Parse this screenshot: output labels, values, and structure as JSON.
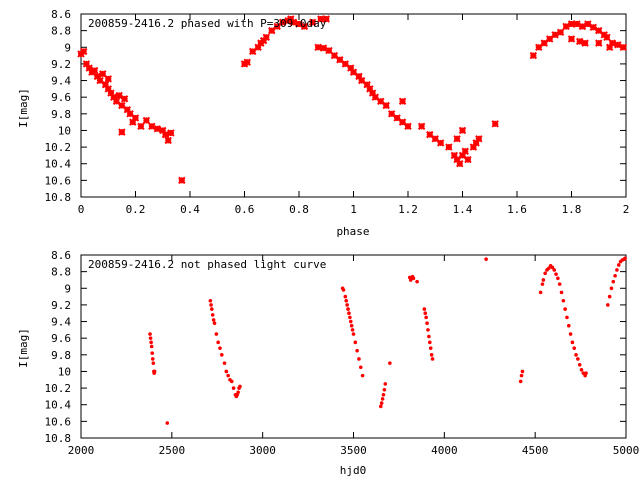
{
  "chart_data": [
    {
      "type": "scatter",
      "title": "200859-2416.2 phased with P=309.0day",
      "xlabel": "phase",
      "ylabel": "I[mag]",
      "xlim": [
        0,
        2
      ],
      "ylim": [
        10.8,
        8.6
      ],
      "y_inverted": true,
      "grid": false,
      "marker": "cross",
      "color": "#ff0000",
      "x_ticks": [
        "0",
        "0.2",
        "0.4",
        "0.6",
        "0.8",
        "1",
        "1.2",
        "1.4",
        "1.6",
        "1.8",
        "2"
      ],
      "x_tick_values": [
        0,
        0.2,
        0.4,
        0.6,
        0.8,
        1.0,
        1.2,
        1.4,
        1.6,
        1.8,
        2.0
      ],
      "y_ticks": [
        "8.6",
        "8.8",
        "9",
        "9.2",
        "9.4",
        "9.6",
        "9.8",
        "10",
        "10.2",
        "10.4",
        "10.6",
        "10.8"
      ],
      "y_tick_values": [
        8.6,
        8.8,
        9.0,
        9.2,
        9.4,
        9.6,
        9.8,
        10.0,
        10.2,
        10.4,
        10.6,
        10.8
      ],
      "series": [
        {
          "points": [
            [
              0.0,
              9.08
            ],
            [
              0.01,
              9.05
            ],
            [
              0.02,
              9.2
            ],
            [
              0.03,
              9.25
            ],
            [
              0.04,
              9.3
            ],
            [
              0.05,
              9.28
            ],
            [
              0.06,
              9.35
            ],
            [
              0.07,
              9.4
            ],
            [
              0.08,
              9.32
            ],
            [
              0.09,
              9.45
            ],
            [
              0.1,
              9.5
            ],
            [
              0.1,
              9.38
            ],
            [
              0.11,
              9.55
            ],
            [
              0.12,
              9.6
            ],
            [
              0.13,
              9.65
            ],
            [
              0.14,
              9.58
            ],
            [
              0.15,
              9.7
            ],
            [
              0.16,
              9.62
            ],
            [
              0.17,
              9.75
            ],
            [
              0.18,
              9.8
            ],
            [
              0.15,
              10.02
            ],
            [
              0.19,
              9.9
            ],
            [
              0.2,
              9.85
            ],
            [
              0.22,
              9.95
            ],
            [
              0.24,
              9.88
            ],
            [
              0.26,
              9.95
            ],
            [
              0.28,
              9.98
            ],
            [
              0.3,
              10.0
            ],
            [
              0.31,
              10.05
            ],
            [
              0.32,
              10.12
            ],
            [
              0.33,
              10.03
            ],
            [
              0.37,
              10.6
            ],
            [
              0.6,
              9.2
            ],
            [
              0.61,
              9.18
            ],
            [
              0.63,
              9.05
            ],
            [
              0.65,
              9.0
            ],
            [
              0.66,
              8.95
            ],
            [
              0.67,
              8.92
            ],
            [
              0.68,
              8.88
            ],
            [
              0.7,
              8.8
            ],
            [
              0.72,
              8.75
            ],
            [
              0.74,
              8.7
            ],
            [
              0.76,
              8.68
            ],
            [
              0.77,
              8.66
            ],
            [
              0.78,
              8.7
            ],
            [
              0.8,
              8.72
            ],
            [
              0.82,
              8.75
            ],
            [
              0.85,
              8.7
            ],
            [
              0.88,
              8.66
            ],
            [
              0.9,
              8.66
            ],
            [
              0.87,
              9.0
            ],
            [
              0.89,
              9.01
            ],
            [
              0.91,
              9.04
            ],
            [
              0.93,
              9.1
            ],
            [
              0.95,
              9.15
            ],
            [
              0.97,
              9.2
            ],
            [
              0.99,
              9.25
            ],
            [
              1.0,
              9.3
            ],
            [
              1.02,
              9.35
            ],
            [
              1.03,
              9.4
            ],
            [
              1.05,
              9.45
            ],
            [
              1.06,
              9.5
            ],
            [
              1.07,
              9.55
            ],
            [
              1.08,
              9.6
            ],
            [
              1.1,
              9.65
            ],
            [
              1.12,
              9.7
            ],
            [
              1.14,
              9.8
            ],
            [
              1.16,
              9.85
            ],
            [
              1.18,
              9.9
            ],
            [
              1.2,
              9.95
            ],
            [
              1.18,
              9.65
            ],
            [
              1.25,
              9.95
            ],
            [
              1.28,
              10.05
            ],
            [
              1.3,
              10.1
            ],
            [
              1.32,
              10.15
            ],
            [
              1.35,
              10.2
            ],
            [
              1.37,
              10.3
            ],
            [
              1.38,
              10.35
            ],
            [
              1.39,
              10.4
            ],
            [
              1.4,
              10.3
            ],
            [
              1.41,
              10.25
            ],
            [
              1.42,
              10.35
            ],
            [
              1.44,
              10.2
            ],
            [
              1.45,
              10.15
            ],
            [
              1.46,
              10.1
            ],
            [
              1.38,
              10.1
            ],
            [
              1.4,
              10.0
            ],
            [
              1.52,
              9.92
            ],
            [
              1.66,
              9.1
            ],
            [
              1.68,
              9.0
            ],
            [
              1.7,
              8.95
            ],
            [
              1.72,
              8.9
            ],
            [
              1.74,
              8.85
            ],
            [
              1.76,
              8.82
            ],
            [
              1.78,
              8.75
            ],
            [
              1.8,
              8.72
            ],
            [
              1.82,
              8.72
            ],
            [
              1.84,
              8.75
            ],
            [
              1.8,
              8.9
            ],
            [
              1.83,
              8.93
            ],
            [
              1.85,
              8.95
            ],
            [
              1.86,
              8.72
            ],
            [
              1.88,
              8.76
            ],
            [
              1.9,
              8.8
            ],
            [
              1.92,
              8.85
            ],
            [
              1.93,
              8.88
            ],
            [
              1.95,
              8.95
            ],
            [
              1.97,
              8.97
            ],
            [
              1.99,
              9.0
            ],
            [
              1.9,
              8.95
            ],
            [
              1.94,
              9.0
            ]
          ]
        }
      ]
    },
    {
      "type": "scatter",
      "title": "200859-2416.2 not phased light curve",
      "xlabel": "hjd0",
      "ylabel": "I[mag]",
      "xlim": [
        2000,
        5000
      ],
      "ylim": [
        10.8,
        8.6
      ],
      "y_inverted": true,
      "grid": false,
      "marker": "dot",
      "color": "#ff0000",
      "x_ticks": [
        "2000",
        "2500",
        "3000",
        "3500",
        "4000",
        "4500",
        "5000"
      ],
      "x_tick_values": [
        2000,
        2500,
        3000,
        3500,
        4000,
        4500,
        5000
      ],
      "y_ticks": [
        "8.6",
        "8.8",
        "9",
        "9.2",
        "9.4",
        "9.6",
        "9.8",
        "10",
        "10.2",
        "10.4",
        "10.6",
        "10.8"
      ],
      "y_tick_values": [
        8.6,
        8.8,
        9.0,
        9.2,
        9.4,
        9.6,
        9.8,
        10.0,
        10.2,
        10.4,
        10.6,
        10.8
      ],
      "series": [
        {
          "points": [
            [
              2380,
              9.55
            ],
            [
              2383,
              9.6
            ],
            [
              2386,
              9.65
            ],
            [
              2389,
              9.7
            ],
            [
              2392,
              9.78
            ],
            [
              2395,
              9.85
            ],
            [
              2398,
              9.9
            ],
            [
              2401,
              10.0
            ],
            [
              2403,
              10.02
            ],
            [
              2405,
              10.0
            ],
            [
              2475,
              10.62
            ],
            [
              2712,
              9.15
            ],
            [
              2716,
              9.2
            ],
            [
              2720,
              9.25
            ],
            [
              2725,
              9.32
            ],
            [
              2730,
              9.38
            ],
            [
              2735,
              9.42
            ],
            [
              2745,
              9.55
            ],
            [
              2755,
              9.65
            ],
            [
              2765,
              9.72
            ],
            [
              2775,
              9.8
            ],
            [
              2790,
              9.9
            ],
            [
              2800,
              10.0
            ],
            [
              2810,
              10.05
            ],
            [
              2820,
              10.1
            ],
            [
              2830,
              10.12
            ],
            [
              2840,
              10.2
            ],
            [
              2850,
              10.28
            ],
            [
              2855,
              10.3
            ],
            [
              2860,
              10.28
            ],
            [
              2865,
              10.25
            ],
            [
              2870,
              10.2
            ],
            [
              2875,
              10.18
            ],
            [
              3440,
              9.0
            ],
            [
              3445,
              9.02
            ],
            [
              3455,
              9.1
            ],
            [
              3460,
              9.15
            ],
            [
              3465,
              9.2
            ],
            [
              3470,
              9.25
            ],
            [
              3475,
              9.3
            ],
            [
              3480,
              9.35
            ],
            [
              3485,
              9.4
            ],
            [
              3490,
              9.45
            ],
            [
              3495,
              9.5
            ],
            [
              3500,
              9.55
            ],
            [
              3510,
              9.65
            ],
            [
              3520,
              9.75
            ],
            [
              3530,
              9.85
            ],
            [
              3540,
              9.95
            ],
            [
              3550,
              10.05
            ],
            [
              3650,
              10.42
            ],
            [
              3655,
              10.38
            ],
            [
              3660,
              10.33
            ],
            [
              3665,
              10.28
            ],
            [
              3670,
              10.22
            ],
            [
              3675,
              10.15
            ],
            [
              3700,
              9.9
            ],
            [
              3810,
              8.87
            ],
            [
              3815,
              8.9
            ],
            [
              3825,
              8.86
            ],
            [
              3830,
              8.88
            ],
            [
              3850,
              8.92
            ],
            [
              3890,
              9.25
            ],
            [
              3895,
              9.3
            ],
            [
              3900,
              9.35
            ],
            [
              3905,
              9.42
            ],
            [
              3910,
              9.5
            ],
            [
              3915,
              9.58
            ],
            [
              3920,
              9.65
            ],
            [
              3925,
              9.72
            ],
            [
              3930,
              9.8
            ],
            [
              3935,
              9.85
            ],
            [
              4230,
              8.65
            ],
            [
              4420,
              10.12
            ],
            [
              4425,
              10.05
            ],
            [
              4430,
              10.0
            ],
            [
              4530,
              9.05
            ],
            [
              4540,
              8.95
            ],
            [
              4545,
              8.9
            ],
            [
              4555,
              8.82
            ],
            [
              4565,
              8.78
            ],
            [
              4575,
              8.76
            ],
            [
              4585,
              8.73
            ],
            [
              4595,
              8.75
            ],
            [
              4605,
              8.78
            ],
            [
              4615,
              8.83
            ],
            [
              4625,
              8.88
            ],
            [
              4635,
              8.95
            ],
            [
              4645,
              9.05
            ],
            [
              4655,
              9.15
            ],
            [
              4665,
              9.25
            ],
            [
              4675,
              9.35
            ],
            [
              4685,
              9.45
            ],
            [
              4695,
              9.55
            ],
            [
              4705,
              9.65
            ],
            [
              4715,
              9.72
            ],
            [
              4725,
              9.8
            ],
            [
              4735,
              9.85
            ],
            [
              4745,
              9.92
            ],
            [
              4755,
              9.98
            ],
            [
              4765,
              10.02
            ],
            [
              4775,
              10.05
            ],
            [
              4780,
              10.02
            ],
            [
              4900,
              9.2
            ],
            [
              4910,
              9.1
            ],
            [
              4920,
              9.0
            ],
            [
              4930,
              8.92
            ],
            [
              4940,
              8.85
            ],
            [
              4950,
              8.78
            ],
            [
              4960,
              8.72
            ],
            [
              4970,
              8.68
            ],
            [
              4980,
              8.66
            ],
            [
              4990,
              8.65
            ],
            [
              4995,
              8.64
            ]
          ]
        }
      ]
    }
  ]
}
